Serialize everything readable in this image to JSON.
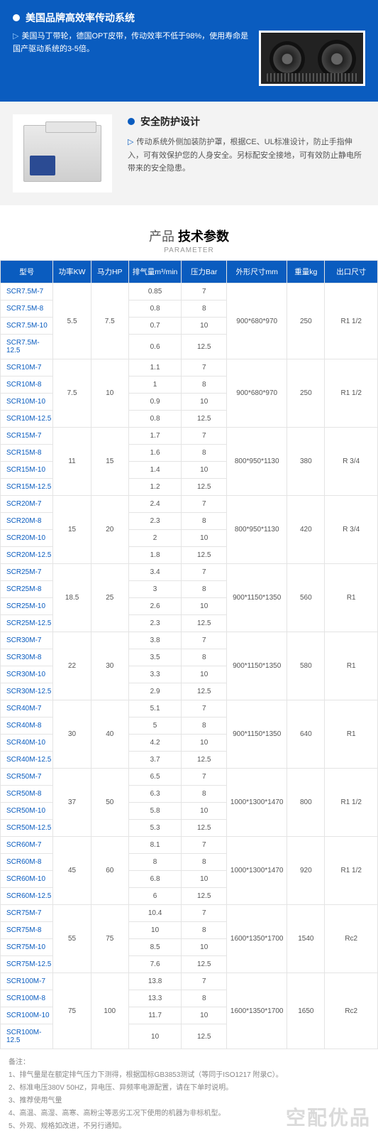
{
  "hero": {
    "title": "美国品牌高效率传动系统",
    "text": "美国马丁带轮，德国OPT皮带，传动效率不低于98%，使用寿命是国产驱动系统的3-5倍。"
  },
  "section2": {
    "title": "安全防护设计",
    "text": "传动系统外侧加装防护罩，根据CE、UL标准设计，防止手指伸入，可有效保护您的人身安全。另标配安全接地，可有效防止静电所带来的安全隐患。"
  },
  "params_header": {
    "light": "产品",
    "bold": "技术参数",
    "sub": "PARAMETER"
  },
  "table": {
    "headers": [
      "型号",
      "功率KW",
      "马力HP",
      "排气量m³/min",
      "压力Bar",
      "外形尺寸mm",
      "重量kg",
      "出口尺寸"
    ],
    "groups": [
      {
        "kw": "5.5",
        "hp": "7.5",
        "dim": "900*680*970",
        "wt": "250",
        "out": "R1 1/2",
        "rows": [
          [
            "SCR7.5M-7",
            "0.85",
            "7"
          ],
          [
            "SCR7.5M-8",
            "0.8",
            "8"
          ],
          [
            "SCR7.5M-10",
            "0.7",
            "10"
          ],
          [
            "SCR7.5M-12.5",
            "0.6",
            "12.5"
          ]
        ]
      },
      {
        "kw": "7.5",
        "hp": "10",
        "dim": "900*680*970",
        "wt": "250",
        "out": "R1 1/2",
        "rows": [
          [
            "SCR10M-7",
            "1.1",
            "7"
          ],
          [
            "SCR10M-8",
            "1",
            "8"
          ],
          [
            "SCR10M-10",
            "0.9",
            "10"
          ],
          [
            "SCR10M-12.5",
            "0.8",
            "12.5"
          ]
        ]
      },
      {
        "kw": "11",
        "hp": "15",
        "dim": "800*950*1130",
        "wt": "380",
        "out": "R 3/4",
        "rows": [
          [
            "SCR15M-7",
            "1.7",
            "7"
          ],
          [
            "SCR15M-8",
            "1.6",
            "8"
          ],
          [
            "SCR15M-10",
            "1.4",
            "10"
          ],
          [
            "SCR15M-12.5",
            "1.2",
            "12.5"
          ]
        ]
      },
      {
        "kw": "15",
        "hp": "20",
        "dim": "800*950*1130",
        "wt": "420",
        "out": "R 3/4",
        "rows": [
          [
            "SCR20M-7",
            "2.4",
            "7"
          ],
          [
            "SCR20M-8",
            "2.3",
            "8"
          ],
          [
            "SCR20M-10",
            "2",
            "10"
          ],
          [
            "SCR20M-12.5",
            "1.8",
            "12.5"
          ]
        ]
      },
      {
        "kw": "18.5",
        "hp": "25",
        "dim": "900*1150*1350",
        "wt": "560",
        "out": "R1",
        "rows": [
          [
            "SCR25M-7",
            "3.4",
            "7"
          ],
          [
            "SCR25M-8",
            "3",
            "8"
          ],
          [
            "SCR25M-10",
            "2.6",
            "10"
          ],
          [
            "SCR25M-12.5",
            "2.3",
            "12.5"
          ]
        ]
      },
      {
        "kw": "22",
        "hp": "30",
        "dim": "900*1150*1350",
        "wt": "580",
        "out": "R1",
        "rows": [
          [
            "SCR30M-7",
            "3.8",
            "7"
          ],
          [
            "SCR30M-8",
            "3.5",
            "8"
          ],
          [
            "SCR30M-10",
            "3.3",
            "10"
          ],
          [
            "SCR30M-12.5",
            "2.9",
            "12.5"
          ]
        ]
      },
      {
        "kw": "30",
        "hp": "40",
        "dim": "900*1150*1350",
        "wt": "640",
        "out": "R1",
        "rows": [
          [
            "SCR40M-7",
            "5.1",
            "7"
          ],
          [
            "SCR40M-8",
            "5",
            "8"
          ],
          [
            "SCR40M-10",
            "4.2",
            "10"
          ],
          [
            "SCR40M-12.5",
            "3.7",
            "12.5"
          ]
        ]
      },
      {
        "kw": "37",
        "hp": "50",
        "dim": "1000*1300*1470",
        "wt": "800",
        "out": "R1 1/2",
        "rows": [
          [
            "SCR50M-7",
            "6.5",
            "7"
          ],
          [
            "SCR50M-8",
            "6.3",
            "8"
          ],
          [
            "SCR50M-10",
            "5.8",
            "10"
          ],
          [
            "SCR50M-12.5",
            "5.3",
            "12.5"
          ]
        ]
      },
      {
        "kw": "45",
        "hp": "60",
        "dim": "1000*1300*1470",
        "wt": "920",
        "out": "R1 1/2",
        "rows": [
          [
            "SCR60M-7",
            "8.1",
            "7"
          ],
          [
            "SCR60M-8",
            "8",
            "8"
          ],
          [
            "SCR60M-10",
            "6.8",
            "10"
          ],
          [
            "SCR60M-12.5",
            "6",
            "12.5"
          ]
        ]
      },
      {
        "kw": "55",
        "hp": "75",
        "dim": "1600*1350*1700",
        "wt": "1540",
        "out": "Rc2",
        "rows": [
          [
            "SCR75M-7",
            "10.4",
            "7"
          ],
          [
            "SCR75M-8",
            "10",
            "8"
          ],
          [
            "SCR75M-10",
            "8.5",
            "10"
          ],
          [
            "SCR75M-12.5",
            "7.6",
            "12.5"
          ]
        ]
      },
      {
        "kw": "75",
        "hp": "100",
        "dim": "1600*1350*1700",
        "wt": "1650",
        "out": "Rc2",
        "rows": [
          [
            "SCR100M-7",
            "13.8",
            "7"
          ],
          [
            "SCR100M-8",
            "13.3",
            "8"
          ],
          [
            "SCR100M-10",
            "11.7",
            "10"
          ],
          [
            "SCR100M-12.5",
            "10",
            "12.5"
          ]
        ]
      }
    ]
  },
  "notes": {
    "title": "备注：",
    "items": [
      "1、排气量是在额定排气压力下测得，根据国标GB3853测试（等同于ISO1217  附录C）。",
      "2、标准电压380V 50HZ，异电压、异频率电源配置，请在下单时说明。",
      "3、推荐使用气量",
      "4、高温、高湿、高寒、高粉尘等恶劣工况下使用的机器为非标机型。",
      "5、外观、规格如改进，不另行通知。"
    ]
  },
  "watermark": "空配优品"
}
